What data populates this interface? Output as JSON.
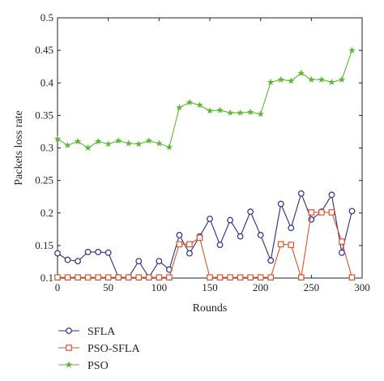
{
  "chart_data": {
    "type": "line",
    "xlabel": "Rounds",
    "ylabel": "Packets loss rate",
    "xlim": [
      0,
      300
    ],
    "ylim": [
      0.1,
      0.5
    ],
    "x_ticks": [
      0,
      50,
      100,
      150,
      200,
      250,
      300
    ],
    "y_ticks": [
      0.1,
      0.15,
      0.2,
      0.25,
      0.3,
      0.35,
      0.4,
      0.45,
      0.5
    ],
    "x_tick_labels": [
      "0",
      "50",
      "100",
      "150",
      "200",
      "250",
      "300"
    ],
    "y_tick_labels": [
      "0.1",
      "0.15",
      "0.2",
      "0.25",
      "0.3",
      "0.35",
      "0.4",
      "0.45",
      "0.5"
    ],
    "grid": false,
    "legend_position": "bottom-left-outside",
    "x": [
      0,
      10,
      20,
      30,
      40,
      50,
      60,
      70,
      80,
      90,
      100,
      110,
      120,
      130,
      140,
      150,
      160,
      170,
      180,
      190,
      200,
      210,
      220,
      230,
      240,
      250,
      260,
      270,
      280,
      290
    ],
    "series": [
      {
        "name": "SFLA",
        "color": "#2a2a8c",
        "marker": "circle",
        "values": [
          0.138,
          0.128,
          0.126,
          0.14,
          0.14,
          0.139,
          0.101,
          0.101,
          0.126,
          0.101,
          0.126,
          0.113,
          0.166,
          0.138,
          0.164,
          0.191,
          0.151,
          0.189,
          0.164,
          0.202,
          0.166,
          0.127,
          0.214,
          0.177,
          0.23,
          0.19,
          0.202,
          0.228,
          0.139,
          0.203
        ]
      },
      {
        "name": "PSO-SFLA",
        "color": "#d9542a",
        "marker": "square",
        "values": [
          0.101,
          0.101,
          0.101,
          0.101,
          0.101,
          0.101,
          0.101,
          0.101,
          0.101,
          0.101,
          0.101,
          0.101,
          0.152,
          0.152,
          0.162,
          0.101,
          0.101,
          0.101,
          0.101,
          0.101,
          0.101,
          0.101,
          0.152,
          0.151,
          0.101,
          0.201,
          0.201,
          0.201,
          0.156,
          0.101
        ]
      },
      {
        "name": "PSO",
        "color": "#5cb832",
        "marker": "star",
        "values": [
          0.314,
          0.304,
          0.31,
          0.3,
          0.31,
          0.306,
          0.311,
          0.307,
          0.306,
          0.311,
          0.307,
          0.301,
          0.362,
          0.37,
          0.366,
          0.357,
          0.358,
          0.354,
          0.354,
          0.355,
          0.352,
          0.401,
          0.405,
          0.403,
          0.415,
          0.405,
          0.405,
          0.401,
          0.405,
          0.45
        ]
      }
    ]
  }
}
